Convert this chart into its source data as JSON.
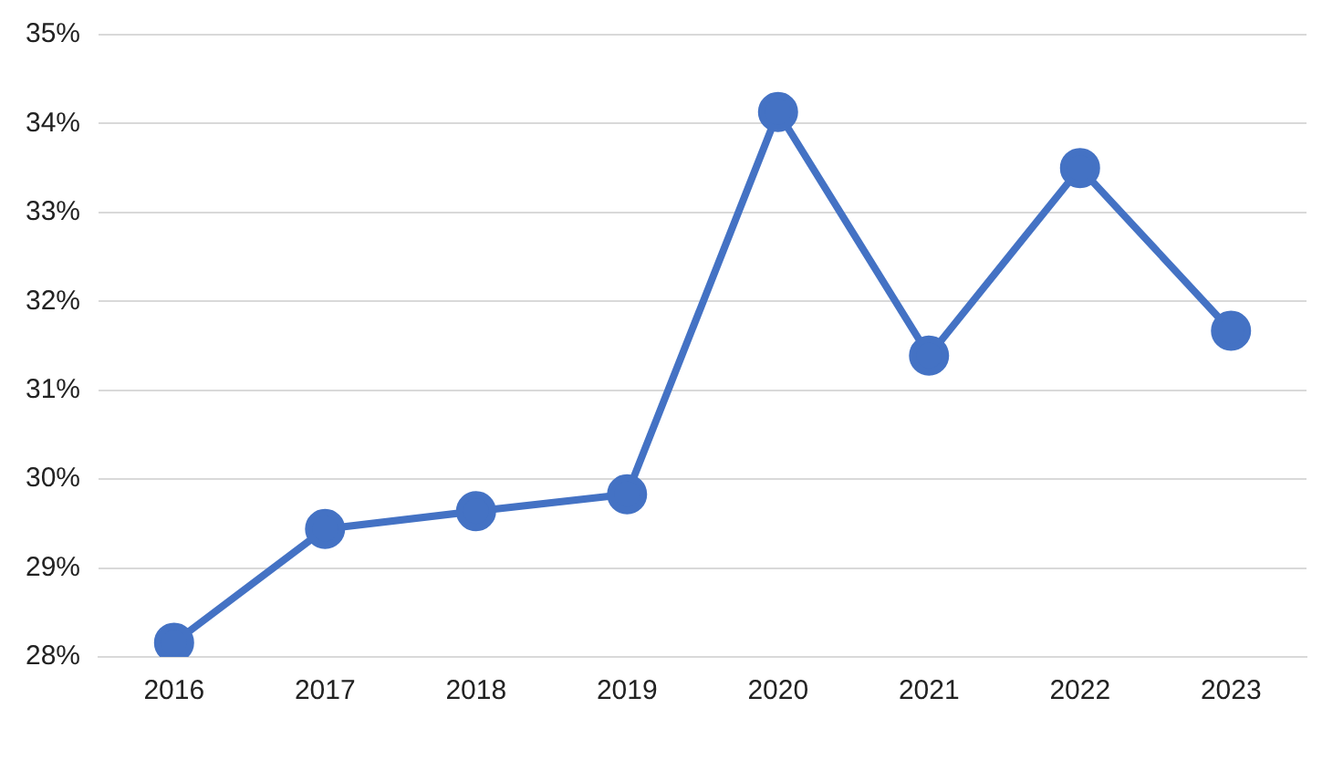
{
  "chart_data": {
    "type": "line",
    "categories": [
      "2016",
      "2017",
      "2018",
      "2019",
      "2020",
      "2021",
      "2022",
      "2023"
    ],
    "series": [
      {
        "color": "#4472c4",
        "values": [
          28.16,
          29.44,
          29.64,
          29.83,
          34.13,
          31.39,
          33.5,
          31.67
        ]
      }
    ],
    "ylim": [
      28,
      35
    ],
    "yticks": [
      {
        "value": 28,
        "label": "28%"
      },
      {
        "value": 29,
        "label": "29%"
      },
      {
        "value": 30,
        "label": "30%"
      },
      {
        "value": 31,
        "label": "31%"
      },
      {
        "value": 32,
        "label": "32%"
      },
      {
        "value": 33,
        "label": "33%"
      },
      {
        "value": 34,
        "label": "34%"
      },
      {
        "value": 35,
        "label": "35%"
      }
    ],
    "grid": "y",
    "marker": "circle",
    "line_style": "solid",
    "legend": false
  }
}
